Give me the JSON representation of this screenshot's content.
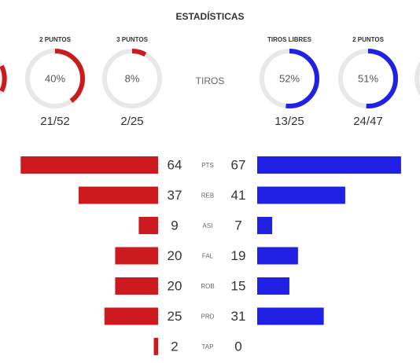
{
  "header": {
    "title": "ESTADÍSTICAS",
    "center_label": "TIROS"
  },
  "colors": {
    "home": "#cc1a1f",
    "away": "#2121e6",
    "track": "#e8e8e8"
  },
  "shooting": {
    "home": [
      {
        "label": "2 PUNTOS",
        "percent": {
          "value": 40,
          "label": "40%"
        },
        "made_attempted": "21/52"
      },
      {
        "label": "3 PUNTOS",
        "percent": {
          "value": 8,
          "label": "8%"
        },
        "made_attempted": "2/25"
      }
    ],
    "away": [
      {
        "label": "TIROS LIBRES",
        "percent": {
          "value": 52,
          "label": "52%"
        },
        "made_attempted": "13/25"
      },
      {
        "label": "2 PUNTOS",
        "percent": {
          "value": 51,
          "label": "51%"
        },
        "made_attempted": "24/47"
      }
    ]
  },
  "stats": [
    {
      "label": "PTS",
      "home": 64,
      "away": 67
    },
    {
      "label": "REB",
      "home": 37,
      "away": 41
    },
    {
      "label": "ASI",
      "home": 9,
      "away": 7
    },
    {
      "label": "FAL",
      "home": 20,
      "away": 19
    },
    {
      "label": "ROB",
      "home": 20,
      "away": 15
    },
    {
      "label": "PRD",
      "home": 25,
      "away": 31
    },
    {
      "label": "TAP",
      "home": 2,
      "away": 0
    }
  ]
}
